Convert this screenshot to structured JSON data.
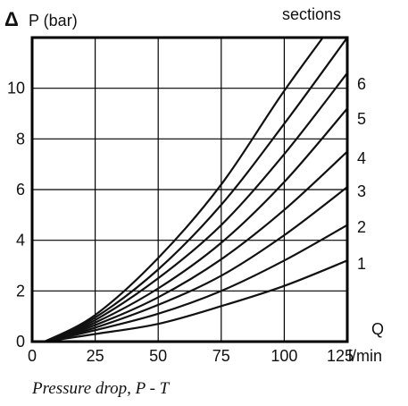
{
  "chart_data": {
    "type": "line",
    "title": "",
    "caption": "Pressure drop, P - T",
    "xlabel": "",
    "ylabel": "P (bar)",
    "y_prefix_symbol": "Δ",
    "x_axis_name": "Q",
    "x_unit": "l/min",
    "legend_title": "sections",
    "legend_placement": "right",
    "grid": true,
    "xlim": [
      0,
      125
    ],
    "ylim": [
      0,
      12
    ],
    "x_ticks": [
      "0",
      "25",
      "50",
      "75",
      "100",
      "125"
    ],
    "y_ticks": [
      "0",
      "2",
      "4",
      "6",
      "8",
      "10"
    ],
    "series": [
      {
        "name": "1",
        "x": [
          5,
          25,
          50,
          75,
          100,
          125
        ],
        "values": [
          0,
          0.3,
          0.7,
          1.4,
          2.2,
          3.2
        ]
      },
      {
        "name": "2",
        "x": [
          5,
          25,
          50,
          75,
          100,
          125
        ],
        "values": [
          0,
          0.45,
          1.1,
          2.0,
          3.2,
          4.6
        ]
      },
      {
        "name": "3",
        "x": [
          5,
          25,
          50,
          75,
          100,
          125
        ],
        "values": [
          0,
          0.55,
          1.45,
          2.6,
          4.2,
          6.1
        ]
      },
      {
        "name": "4",
        "x": [
          5,
          25,
          50,
          75,
          100,
          125
        ],
        "values": [
          0,
          0.65,
          1.75,
          3.25,
          5.2,
          7.5
        ]
      },
      {
        "name": "5",
        "x": [
          5,
          25,
          50,
          75,
          100,
          125
        ],
        "values": [
          0,
          0.75,
          2.1,
          3.9,
          6.3,
          9.2
        ]
      },
      {
        "name": "6",
        "x": [
          5,
          25,
          50,
          75,
          100,
          125
        ],
        "values": [
          0,
          0.85,
          2.5,
          4.6,
          7.4,
          10.6
        ]
      },
      {
        "name": "",
        "x": [
          5,
          25,
          50,
          75,
          100,
          125
        ],
        "values": [
          0,
          0.95,
          2.85,
          5.4,
          8.6,
          12.0
        ]
      },
      {
        "name": "",
        "x": [
          5,
          25,
          50,
          75,
          100,
          125
        ],
        "values": [
          0,
          1.05,
          3.3,
          6.2,
          9.9,
          13.3
        ]
      }
    ],
    "colors": {
      "line": "#111111",
      "frame": "#000000",
      "grid": "#000000",
      "text": "#111111"
    }
  }
}
